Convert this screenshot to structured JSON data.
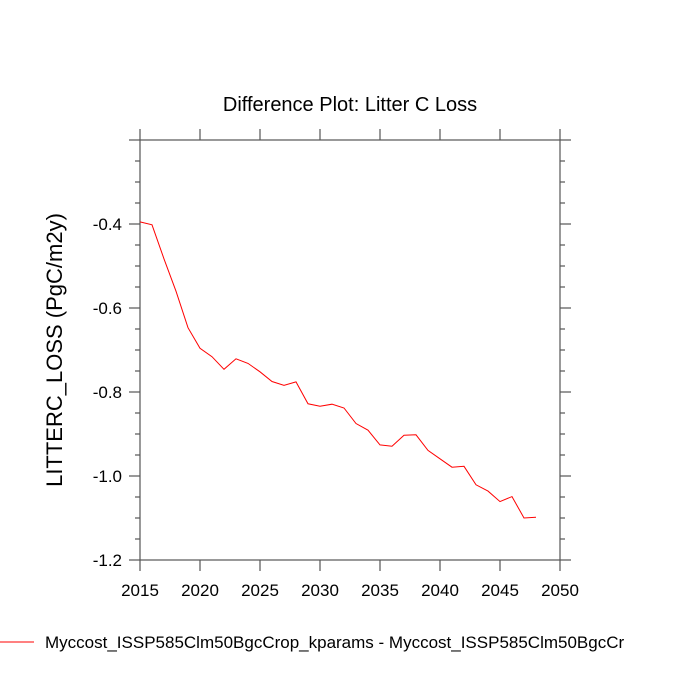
{
  "chart_data": {
    "type": "line",
    "title": "Difference Plot: Litter C Loss",
    "xlabel": "",
    "ylabel": "LITTERC_LOSS  (PgC/m2y)",
    "xlim": [
      2015,
      2050
    ],
    "ylim": [
      -1.2,
      -0.2
    ],
    "x_ticks": [
      2015,
      2020,
      2025,
      2030,
      2035,
      2040,
      2045,
      2050
    ],
    "x_tick_labels": [
      "2015",
      "2020",
      "2025",
      "2030",
      "2035",
      "2040",
      "2045",
      "2050"
    ],
    "y_ticks": [
      -1.2,
      -1.0,
      -0.8,
      -0.6,
      -0.4
    ],
    "y_tick_labels": [
      "-1.2",
      "-1.0",
      "-0.8",
      "-0.6",
      "-0.4"
    ],
    "grid": false,
    "legend_placement": "bottom",
    "series": [
      {
        "name": "Myccost_ISSP585Clm50BgcCrop_kparams - Myccost_ISSP585Clm50BgcCr",
        "color": "#ff0000",
        "x": [
          2015,
          2016,
          2017,
          2018,
          2019,
          2020,
          2021,
          2022,
          2023,
          2024,
          2025,
          2026,
          2027,
          2028,
          2029,
          2030,
          2031,
          2032,
          2033,
          2034,
          2035,
          2036,
          2037,
          2038,
          2039,
          2040,
          2041,
          2042,
          2043,
          2044,
          2045,
          2046,
          2047,
          2048
        ],
        "y": [
          -0.395,
          -0.402,
          -0.483,
          -0.56,
          -0.647,
          -0.696,
          -0.716,
          -0.746,
          -0.721,
          -0.732,
          -0.752,
          -0.775,
          -0.784,
          -0.776,
          -0.828,
          -0.834,
          -0.829,
          -0.838,
          -0.875,
          -0.891,
          -0.926,
          -0.929,
          -0.903,
          -0.902,
          -0.939,
          -0.959,
          -0.979,
          -0.977,
          -1.021,
          -1.036,
          -1.061,
          -1.049,
          -1.1,
          -1.098
        ]
      }
    ]
  }
}
